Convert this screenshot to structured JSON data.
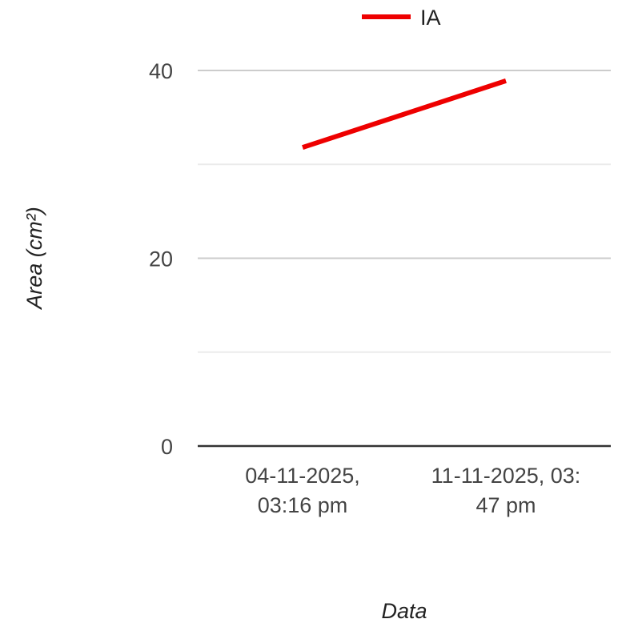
{
  "chart_data": {
    "type": "line",
    "categories": [
      "04-11-2025, 03:16 pm",
      "11-11-2025, 03:47 pm"
    ],
    "x_tick_lines": [
      [
        "04-11-2025,",
        "03:16 pm"
      ],
      [
        "11-11-2025, 03:",
        "47 pm"
      ]
    ],
    "series": [
      {
        "name": "IA",
        "values": [
          31.8,
          38.9
        ],
        "color": "#ee0000"
      }
    ],
    "xlabel": "Data",
    "ylabel": "Area (cm²)",
    "ylim": [
      0,
      40
    ],
    "yticks": [
      0,
      20,
      40
    ],
    "y_minor_gridlines": [
      10,
      30
    ],
    "grid": true,
    "legend_position": "top",
    "colors": {
      "major_grid": "#cccccc",
      "minor_grid": "#ebebeb",
      "baseline": "#333333"
    }
  }
}
